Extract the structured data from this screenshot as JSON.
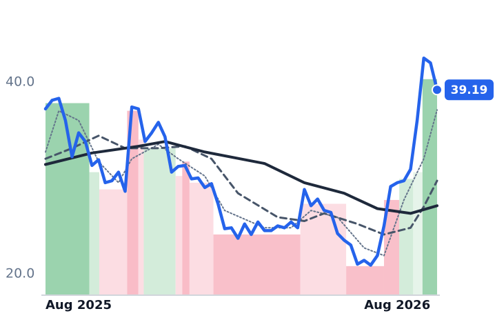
{
  "chart_data": {
    "type": "line",
    "categories": [
      "Aug 2025",
      null,
      null,
      null,
      null,
      null,
      null,
      null,
      null,
      null,
      null,
      null,
      null,
      null,
      null,
      null,
      null,
      null,
      null,
      null,
      null,
      null,
      null,
      null,
      null,
      null,
      null,
      null,
      null,
      null,
      null,
      null,
      null,
      null,
      null,
      null,
      null,
      null,
      null,
      null,
      null,
      null,
      null,
      null,
      null,
      null,
      null,
      null,
      null,
      null,
      null,
      null,
      null,
      "Aug 2026",
      null,
      null,
      null,
      null,
      null,
      null
    ],
    "ylim": [
      17.84,
      47.12
    ],
    "yticks": [
      {
        "value": 20,
        "label": "20.0"
      },
      {
        "value": 40,
        "label": "40.0"
      }
    ],
    "series": [
      {
        "color": "#64748b",
        "style": "dotted",
        "width": 2,
        "x": [
          0,
          2,
          5,
          8,
          11,
          13,
          17,
          20,
          24,
          27,
          33,
          37,
          40,
          44,
          48,
          51,
          54,
          57,
          59
        ],
        "values": [
          32.7,
          37.0,
          36.0,
          31.7,
          29.5,
          32.0,
          33.5,
          32.0,
          30.2,
          26.6,
          24.8,
          24.8,
          26.6,
          25.9,
          22.7,
          21.9,
          27.7,
          32.0,
          37.1
        ]
      },
      {
        "color": "#475569",
        "style": "dashed",
        "width": 3,
        "x": [
          0,
          4,
          8,
          12,
          17,
          21,
          25,
          29,
          35,
          39,
          42,
          47,
          51,
          55,
          57,
          59
        ],
        "values": [
          32.0,
          33.1,
          34.4,
          33.1,
          33.1,
          33.3,
          32.0,
          28.4,
          25.9,
          25.5,
          26.3,
          25.2,
          24.1,
          24.8,
          27.0,
          29.7
        ]
      },
      {
        "color": "#1e293b",
        "style": "solid",
        "width": 4,
        "x": [
          0,
          7,
          14,
          18,
          24,
          33,
          39,
          45,
          50,
          55,
          59
        ],
        "values": [
          31.4,
          32.6,
          33.3,
          33.8,
          32.7,
          31.5,
          29.5,
          28.4,
          26.8,
          26.3,
          27.1
        ]
      },
      {
        "color": "#2563eb",
        "style": "solid",
        "width": 4.5,
        "values": [
          37.2,
          38.1,
          38.3,
          36.0,
          32.2,
          34.7,
          33.8,
          31.3,
          31.9,
          29.5,
          29.7,
          30.6,
          28.6,
          37.4,
          37.2,
          33.8,
          34.7,
          35.8,
          34.3,
          30.6,
          31.2,
          31.3,
          29.9,
          30.0,
          29.0,
          29.4,
          27.3,
          24.7,
          24.8,
          23.7,
          25.2,
          24.1,
          25.4,
          24.5,
          24.5,
          25.0,
          24.8,
          25.4,
          24.8,
          28.8,
          27.1,
          27.8,
          26.6,
          26.4,
          24.2,
          23.5,
          23.0,
          21.0,
          21.4,
          20.9,
          21.9,
          25.0,
          29.1,
          29.5,
          29.7,
          30.9,
          36.0,
          42.5,
          42.0,
          39.19
        ]
      }
    ],
    "bands": [
      {
        "from": 0,
        "to": 6.6,
        "value": 37.8,
        "color": "#9bd3ae"
      },
      {
        "from": 6.6,
        "to": 8.1,
        "value": 30.6,
        "color": "#d3ecda"
      },
      {
        "from": 8.1,
        "to": 12.3,
        "value": 28.8,
        "color": "#fcdde3"
      },
      {
        "from": 12.3,
        "to": 14.0,
        "value": 37.0,
        "color": "#f9bcc7"
      },
      {
        "from": 14.0,
        "to": 14.8,
        "value": 34.0,
        "color": "#fcdde3"
      },
      {
        "from": 14.8,
        "to": 19.6,
        "value": 33.1,
        "color": "#d3ecda"
      },
      {
        "from": 19.6,
        "to": 20.6,
        "value": 30.2,
        "color": "#fcdde3"
      },
      {
        "from": 20.6,
        "to": 21.7,
        "value": 31.7,
        "color": "#f9bcc7"
      },
      {
        "from": 21.7,
        "to": 25.3,
        "value": 29.5,
        "color": "#fcdde3"
      },
      {
        "from": 25.3,
        "to": 38.4,
        "value": 24.1,
        "color": "#f9c0ca"
      },
      {
        "from": 38.4,
        "to": 45.3,
        "value": 27.3,
        "color": "#fcdde3"
      },
      {
        "from": 45.3,
        "to": 51.0,
        "value": 20.8,
        "color": "#f9c0ca"
      },
      {
        "from": 51.0,
        "to": 53.3,
        "value": 27.7,
        "color": "#f9c0ca"
      },
      {
        "from": 53.3,
        "to": 55.4,
        "value": 29.9,
        "color": "#d3ecda"
      },
      {
        "from": 55.4,
        "to": 56.8,
        "value": 30.6,
        "color": "#e6f4ea"
      },
      {
        "from": 56.8,
        "to": 59,
        "value": 40.3,
        "color": "#9bd3ae"
      }
    ]
  }
}
